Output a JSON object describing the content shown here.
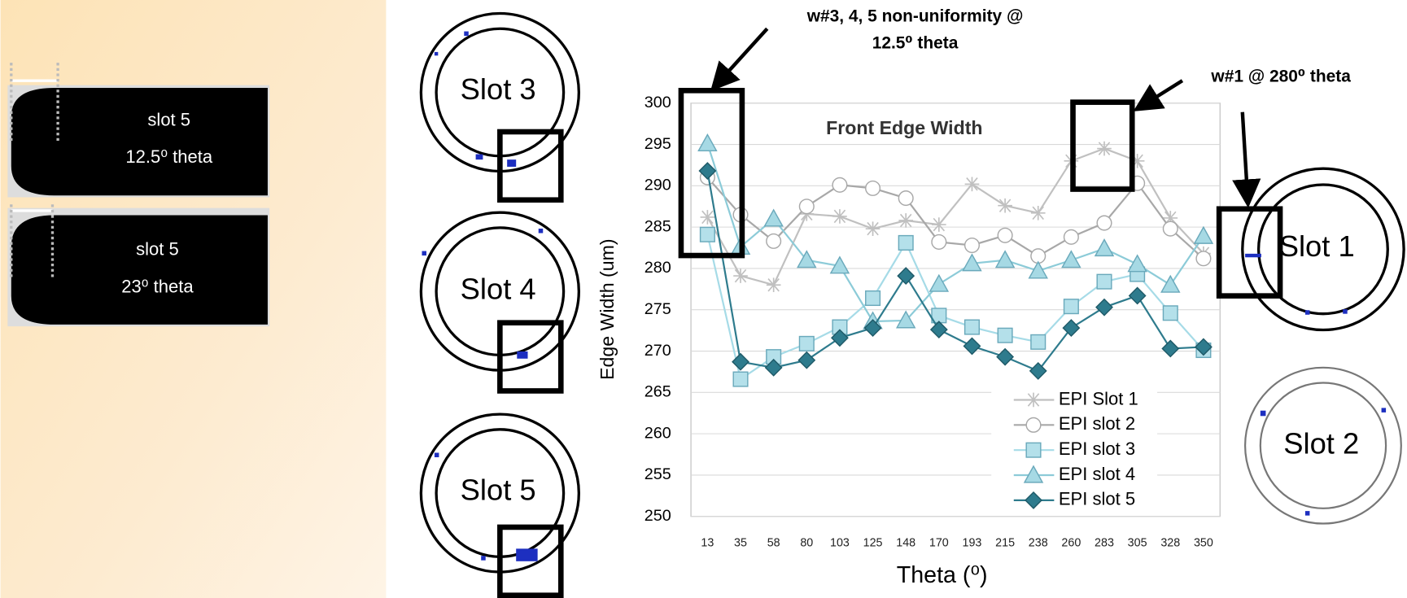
{
  "chart_data": {
    "type": "line",
    "title": "Front Edge Width",
    "x_label": "Theta (⁰)",
    "y_label": "Edge Width (um)",
    "categories": [
      "13",
      "35",
      "58",
      "80",
      "103",
      "125",
      "148",
      "170",
      "193",
      "215",
      "238",
      "260",
      "283",
      "305",
      "328",
      "350"
    ],
    "ylim": [
      250,
      300
    ],
    "yticks": [
      250,
      255,
      260,
      265,
      270,
      275,
      280,
      285,
      290,
      295,
      300
    ],
    "grid": true,
    "legend": "lower right",
    "series": [
      {
        "name": "EPI Slot 1",
        "color": "#c0c0c0",
        "marker": "star",
        "marker_color": "#c0c0c0",
        "values": [
          286.2,
          279.1,
          278,
          286.6,
          286.3,
          284.8,
          285.8,
          285.3,
          290.2,
          287.6,
          286.7,
          293,
          294.5,
          293,
          286.1,
          281.8
        ]
      },
      {
        "name": "EPI slot 2",
        "color": "#a8a8a8",
        "marker": "circle",
        "marker_color": "#ffffff",
        "values": [
          291,
          286.5,
          283.3,
          287.5,
          290.1,
          289.7,
          288.5,
          283.2,
          282.8,
          284,
          281.5,
          283.8,
          285.5,
          290.3,
          284.8,
          281.2
        ]
      },
      {
        "name": "EPI slot 3",
        "color": "#a6dbe7",
        "marker": "square",
        "marker_color": "#b4e0ea",
        "values": [
          284.1,
          266.6,
          269.3,
          270.9,
          272.9,
          276.4,
          283.1,
          274.3,
          272.9,
          271.9,
          271.1,
          275.4,
          278.4,
          279.3,
          274.6,
          270.1
        ]
      },
      {
        "name": "EPI slot 4",
        "color": "#8ccbd8",
        "marker": "triangle",
        "marker_color": "#a6d9e4",
        "values": [
          295.1,
          282.6,
          286,
          281,
          280.3,
          273.6,
          273.7,
          278.1,
          280.6,
          281,
          279.7,
          281,
          282.4,
          280.5,
          278,
          283.9
        ]
      },
      {
        "name": "EPI slot 5",
        "color": "#2e7b8d",
        "marker": "diamond",
        "marker_color": "#2e7b8d",
        "values": [
          291.8,
          268.7,
          268,
          268.9,
          271.6,
          272.8,
          279.1,
          272.6,
          270.6,
          269.3,
          267.6,
          272.8,
          275.3,
          276.7,
          270.3,
          270.5
        ]
      }
    ],
    "annotations": [
      [
        "w#3, 4, 5 non-uniformity @",
        "12.5⁰ theta"
      ],
      [
        "w#1 @ 280⁰ theta"
      ]
    ]
  },
  "profile_images": [
    {
      "lines": [
        "slot 5",
        "12.5⁰ theta"
      ]
    },
    {
      "lines": [
        "slot 5",
        "23⁰ theta"
      ]
    }
  ],
  "wafers": [
    "Slot 3",
    "Slot 4",
    "Slot 5",
    "Slot 1",
    "Slot 2"
  ]
}
